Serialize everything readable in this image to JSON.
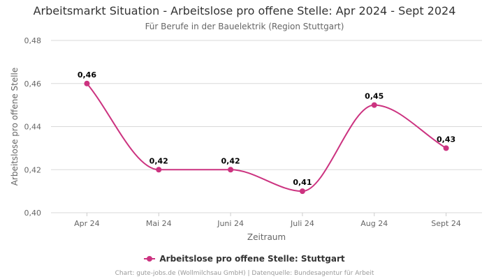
{
  "chart_data": {
    "type": "line",
    "title": "Arbeitsmarkt Situation - Arbeitslose pro offene Stelle: Apr 2024 - Sept 2024",
    "subtitle": "Für Berufe in der Bauelektrik (Region Stuttgart)",
    "xlabel": "Zeitraum",
    "ylabel": "Arbeitslose pro offene Stelle",
    "categories": [
      "Apr 24",
      "Mai 24",
      "Juni 24",
      "Juli 24",
      "Aug 24",
      "Sept 24"
    ],
    "series": [
      {
        "name": "Arbeitslose pro offene Stelle: Stuttgart",
        "values": [
          0.46,
          0.42,
          0.42,
          0.41,
          0.45,
          0.43
        ],
        "labels": [
          "0,46",
          "0,42",
          "0,42",
          "0,41",
          "0,45",
          "0,43"
        ],
        "color": "#cc3380"
      }
    ],
    "ylim": [
      0.4,
      0.48
    ],
    "yticks": [
      "0,40",
      "0,42",
      "0,44",
      "0,46",
      "0,48"
    ],
    "grid": true,
    "legend": "bottom-center",
    "credits": "Chart: gute-jobs.de (Wollmilchsau GmbH) | Datenquelle: Bundesagentur für Arbeit"
  }
}
